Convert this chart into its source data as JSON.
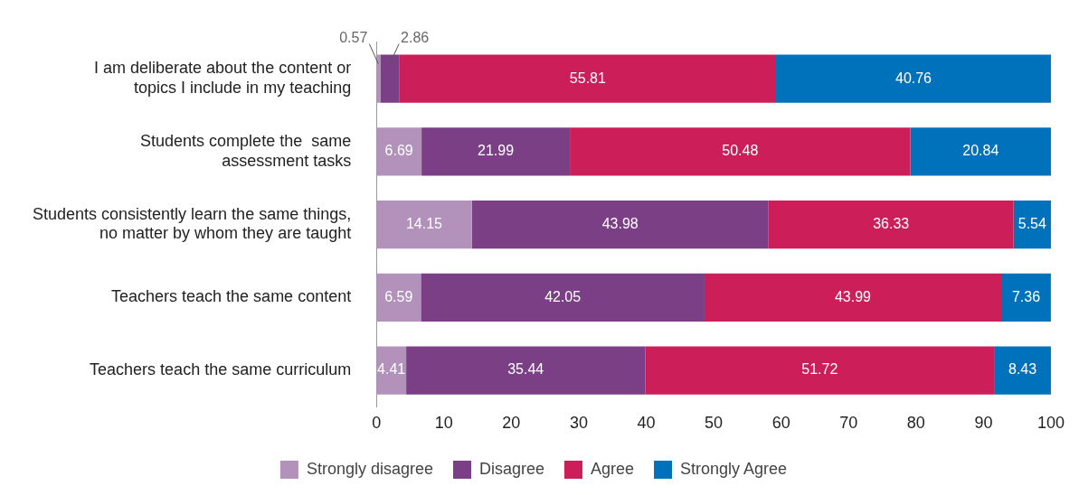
{
  "chart_data": {
    "type": "bar",
    "orientation": "horizontal",
    "stacked": true,
    "categories": [
      "I am deliberate about the content or\ntopics I include in my teaching",
      "Students complete the  same\nassessment tasks",
      "Students consistently learn the same things,\nno matter by whom they are taught",
      "Teachers teach the same content",
      "Teachers teach the same curriculum"
    ],
    "series": [
      {
        "name": "Strongly disagree",
        "color": "#b292bb",
        "values": [
          0.57,
          6.69,
          14.15,
          6.59,
          4.41
        ]
      },
      {
        "name": "Disagree",
        "color": "#7b3f86",
        "values": [
          2.86,
          21.99,
          43.98,
          42.05,
          35.44
        ]
      },
      {
        "name": "Agree",
        "color": "#cc1f5a",
        "values": [
          55.81,
          50.48,
          36.33,
          43.99,
          51.72
        ]
      },
      {
        "name": "Strongly Agree",
        "color": "#0072bb",
        "values": [
          40.76,
          20.84,
          5.54,
          7.36,
          8.43
        ]
      }
    ],
    "xlim": [
      0,
      100
    ],
    "xticks": [
      0,
      10,
      20,
      30,
      40,
      50,
      60,
      70,
      80,
      90,
      100
    ],
    "data_labels": true,
    "grid": false,
    "legend": "bottom"
  }
}
